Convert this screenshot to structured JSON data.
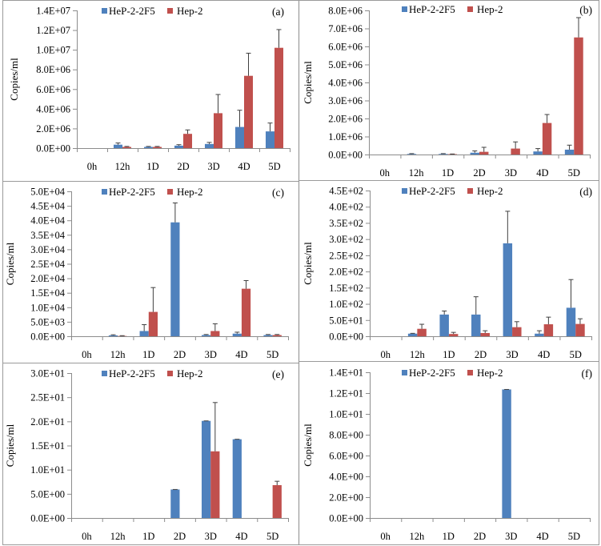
{
  "figure": {
    "legend": [
      "HeP-2-2F5",
      "Hep-2"
    ],
    "colors": {
      "HeP-2-2F5": "#4f81bd",
      "Hep-2": "#c0504d",
      "axis": "#8c8c8c",
      "errorbar": "#404040",
      "border": "#9a9a9a"
    }
  },
  "chart_data": [
    {
      "type": "bar",
      "panel": "(a)",
      "categories": [
        "0h",
        "12h",
        "1D",
        "2D",
        "3D",
        "4D",
        "5D"
      ],
      "ylabel": "Copies/ml",
      "xlabel": "",
      "ylim": [
        0,
        14000000
      ],
      "yticks": [
        "0.0E+00",
        "2.0E+06",
        "4.0E+06",
        "6.0E+06",
        "8.0E+06",
        "1.0E+07",
        "1.2E+07",
        "1.4E+07"
      ],
      "ytick_values": [
        0,
        2000000,
        4000000,
        6000000,
        8000000,
        10000000,
        12000000,
        14000000
      ],
      "legend_position": "top-center",
      "series": [
        {
          "name": "HeP-2-2F5",
          "values": [
            0,
            350000,
            120000,
            250000,
            420000,
            2150000,
            1700000
          ],
          "error_upper": [
            0,
            520000,
            170000,
            350000,
            580000,
            3850000,
            2550000
          ]
        },
        {
          "name": "Hep-2",
          "values": [
            0,
            120000,
            120000,
            1450000,
            3550000,
            7350000,
            10200000
          ],
          "error_upper": [
            0,
            170000,
            170000,
            1850000,
            5450000,
            9650000,
            12050000
          ]
        }
      ]
    },
    {
      "type": "bar",
      "panel": "(b)",
      "categories": [
        "0h",
        "12h",
        "1D",
        "2D",
        "3D",
        "4D",
        "5D"
      ],
      "ylabel": "Copies/ml",
      "xlabel": "",
      "ylim": [
        0,
        8000000
      ],
      "yticks": [
        "0.0E+00",
        "1.0E+06",
        "2.0E+06",
        "3.0E+06",
        "4.0E+06",
        "5.0E+06",
        "6.0E+06",
        "7.0E+06",
        "8.0E+06"
      ],
      "ytick_values": [
        0,
        1000000,
        2000000,
        3000000,
        4000000,
        5000000,
        6000000,
        7000000,
        8000000
      ],
      "legend_position": "top-center",
      "series": [
        {
          "name": "HeP-2-2F5",
          "values": [
            0,
            30000,
            30000,
            100000,
            0,
            170000,
            270000
          ],
          "error_upper": [
            0,
            50000,
            50000,
            200000,
            0,
            330000,
            520000
          ]
        },
        {
          "name": "Hep-2",
          "values": [
            0,
            0,
            20000,
            150000,
            330000,
            1750000,
            6500000
          ],
          "error_upper": [
            0,
            0,
            30000,
            400000,
            700000,
            2220000,
            7600000
          ]
        }
      ]
    },
    {
      "type": "bar",
      "panel": "(c)",
      "categories": [
        "0h",
        "12h",
        "1D",
        "2D",
        "3D",
        "4D",
        "5D"
      ],
      "ylabel": "Copies/ml",
      "xlabel": "",
      "ylim": [
        0,
        50000
      ],
      "yticks": [
        "0.0E+00",
        "5.0E+03",
        "1.0E+04",
        "1.5E+04",
        "2.0E+04",
        "2.5E+04",
        "3.0E+04",
        "3.5E+04",
        "4.0E+04",
        "4.5E+04",
        "5.0E+04"
      ],
      "ytick_values": [
        0,
        5000,
        10000,
        15000,
        20000,
        25000,
        30000,
        35000,
        40000,
        45000,
        50000
      ],
      "legend_position": "top-center",
      "series": [
        {
          "name": "HeP-2-2F5",
          "values": [
            0,
            300,
            1800,
            39300,
            400,
            900,
            400
          ],
          "error_upper": [
            0,
            500,
            4000,
            46000,
            600,
            1400,
            600
          ]
        },
        {
          "name": "Hep-2",
          "values": [
            0,
            100,
            8400,
            0,
            1800,
            16400,
            400
          ],
          "error_upper": [
            0,
            200,
            16800,
            0,
            4300,
            19200,
            600
          ]
        }
      ]
    },
    {
      "type": "bar",
      "panel": "(d)",
      "categories": [
        "0h",
        "12h",
        "1D",
        "2D",
        "3D",
        "4D",
        "5D"
      ],
      "ylabel": "Copies/ml",
      "xlabel": "",
      "ylim": [
        0,
        450
      ],
      "yticks": [
        "0.0E+00",
        "5.0E+01",
        "1.0E+02",
        "1.5E+02",
        "2.0E+02",
        "2.5E+02",
        "3.0E+02",
        "3.5E+02",
        "4.0E+02",
        "4.5E+02"
      ],
      "ytick_values": [
        0,
        50,
        100,
        150,
        200,
        250,
        300,
        350,
        400,
        450
      ],
      "legend_position": "top-center",
      "series": [
        {
          "name": "HeP-2-2F5",
          "values": [
            0,
            8,
            67,
            67,
            287,
            8,
            88
          ],
          "error_upper": [
            0,
            9,
            78,
            122,
            386,
            17,
            175
          ]
        },
        {
          "name": "Hep-2",
          "values": [
            0,
            23,
            7,
            10,
            28,
            37,
            38
          ],
          "error_upper": [
            0,
            37,
            12,
            17,
            45,
            59,
            54
          ]
        }
      ]
    },
    {
      "type": "bar",
      "panel": "(e)",
      "categories": [
        "0h",
        "12h",
        "1D",
        "2D",
        "3D",
        "4D",
        "5D"
      ],
      "ylabel": "Copies/ml",
      "xlabel": "",
      "ylim": [
        0,
        30
      ],
      "yticks": [
        "0.0E+00",
        "5.0E+00",
        "1.0E+01",
        "1.5E+01",
        "2.0E+01",
        "2.5E+01",
        "3.0E+01"
      ],
      "ytick_values": [
        0,
        5,
        10,
        15,
        20,
        25,
        30
      ],
      "legend_position": "top-center",
      "series": [
        {
          "name": "HeP-2-2F5",
          "values": [
            0,
            0,
            0,
            5.9,
            20.1,
            16.3,
            0
          ],
          "error_upper": [
            0,
            0,
            0,
            5.9,
            20.1,
            16.3,
            0
          ]
        },
        {
          "name": "Hep-2",
          "values": [
            0,
            0,
            0,
            0,
            13.8,
            0,
            6.8
          ],
          "error_upper": [
            0,
            0,
            0,
            0,
            23.9,
            0,
            7.6
          ]
        }
      ]
    },
    {
      "type": "bar",
      "panel": "(f)",
      "categories": [
        "0h",
        "12h",
        "1D",
        "2D",
        "3D",
        "4D",
        "5D"
      ],
      "ylabel": "Copies/ml",
      "xlabel": "",
      "ylim": [
        0,
        14
      ],
      "yticks": [
        "0.0E+00",
        "2.0E+00",
        "4.0E+00",
        "6.0E+00",
        "8.0E+00",
        "1.0E+01",
        "1.2E+01",
        "1.4E+01"
      ],
      "ytick_values": [
        0,
        2,
        4,
        6,
        8,
        10,
        12,
        14
      ],
      "legend_position": "top-center",
      "series": [
        {
          "name": "HeP-2-2F5",
          "values": [
            0,
            0,
            0,
            0,
            12.35,
            0,
            0
          ],
          "error_upper": [
            0,
            0,
            0,
            0,
            12.35,
            0,
            0
          ]
        },
        {
          "name": "Hep-2",
          "values": [
            0,
            0,
            0,
            0,
            0,
            0,
            0
          ],
          "error_upper": [
            0,
            0,
            0,
            0,
            0,
            0,
            0
          ]
        }
      ]
    }
  ]
}
